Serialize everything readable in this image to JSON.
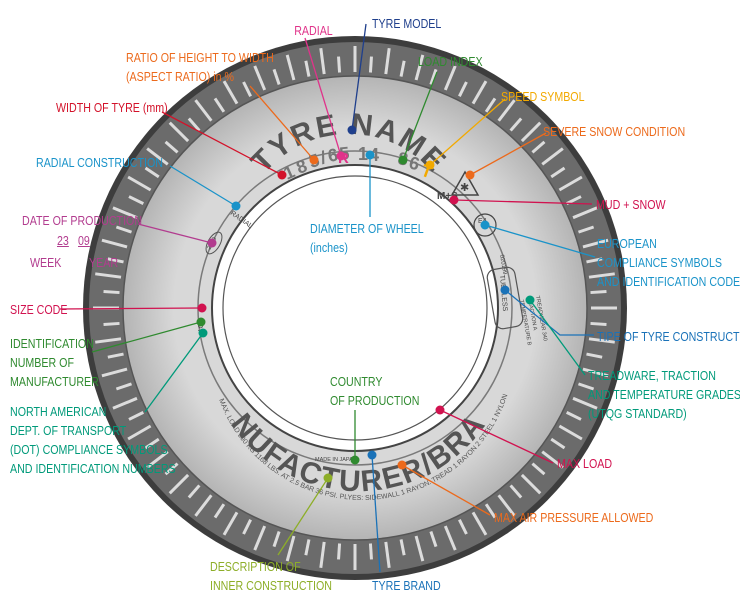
{
  "tyre": {
    "name": "TYRE NAME",
    "size_chars": [
      "1",
      "8",
      "5",
      "/",
      "6",
      "5",
      " ",
      "R",
      " ",
      "1",
      "4",
      " ",
      " ",
      "8",
      "6",
      " ",
      "T"
    ],
    "brand": "MANUFACTURER/BRAND",
    "radial": "RADIAL",
    "date_code": "2309",
    "ms": "M+S",
    "e_mark": "E4",
    "approval_no": "020199",
    "tubeless": "TUBELESS",
    "utqg": [
      "TREADWEAR 340",
      "TRACTION A",
      "TEMPERATURE B"
    ],
    "max_load": "MAX. LOAD 500 KG 1168 LBS. AT 2.5 BAR 36 PSI. PLYES: SIDEWALL 1 RAYON. TREAD 1 RAYON 2 STEEL 1 NYLON",
    "dot": "DOT",
    "country": "MADE IN JAPAN"
  },
  "labels": {
    "radial": "RADIAL",
    "tyre_model": "TYRE MODEL",
    "aspect_ratio": [
      "RATIO OF HEIGHT TO WIDTH",
      "(ASPECT RATIO) in %"
    ],
    "load_index": "LOAD INDEX",
    "width": "WIDTH OF TYRE (mm)",
    "speed_symbol": "SPEED SYMBOL",
    "severe_snow": "SEVERE SNOW CONDITION",
    "radial_construction": "RADIAL CONSTRUCTION",
    "mud_snow": "MUD + SNOW",
    "date_of_production": "DATE OF PRODUCTION",
    "date_week_digits": "23",
    "date_year_digits": "09",
    "week": "WEEK",
    "year": "YEAR",
    "diameter": [
      "DIAMETER OF WHEEL",
      "(inches)"
    ],
    "european": [
      "EUROPEAN",
      "COMPLIANCE SYMBOLS",
      "AND IDENTIFICATION CODE"
    ],
    "size_code": "SIZE CODE",
    "tyre_construction": "TIPE OF TYRE CONSTRUCTION",
    "identification": [
      "IDENTIFICATION",
      "NUMBER OF",
      "MANUFACTURER"
    ],
    "treadware": [
      "TREADWARE, TRACTION",
      "AND TEMPERATURE GRADES",
      "(UTQG STANDARD)"
    ],
    "country": [
      "COUNTRY",
      "OF PRODUCTION"
    ],
    "north_american": [
      "NORTH AMERICAN",
      "DEPT. OF TRANSPORT",
      "(DOT) COMPLIANCE SYMBOLS",
      "AND IDENTIFICATION NUMBERS"
    ],
    "max_load": "MAX LOAD",
    "max_air": "MAX AIR PRESSURE ALLOWED",
    "inner_construction": [
      "DESCRIPTION OF",
      "INNER CONSTRUCTION"
    ],
    "tyre_brand": "TYRE BRAND"
  },
  "colors": {
    "pink": "#e0338a",
    "navy": "#1f3f8c",
    "orange": "#ec6a1c",
    "green": "#2f8a2f",
    "red": "#d3122a",
    "yellow": "#f2a900",
    "cyan": "#1a93c9",
    "magenta": "#b23c8f",
    "crimson": "#d1124f",
    "teal": "#009a7a",
    "lime": "#8dae28",
    "blue": "#1a72b8"
  }
}
